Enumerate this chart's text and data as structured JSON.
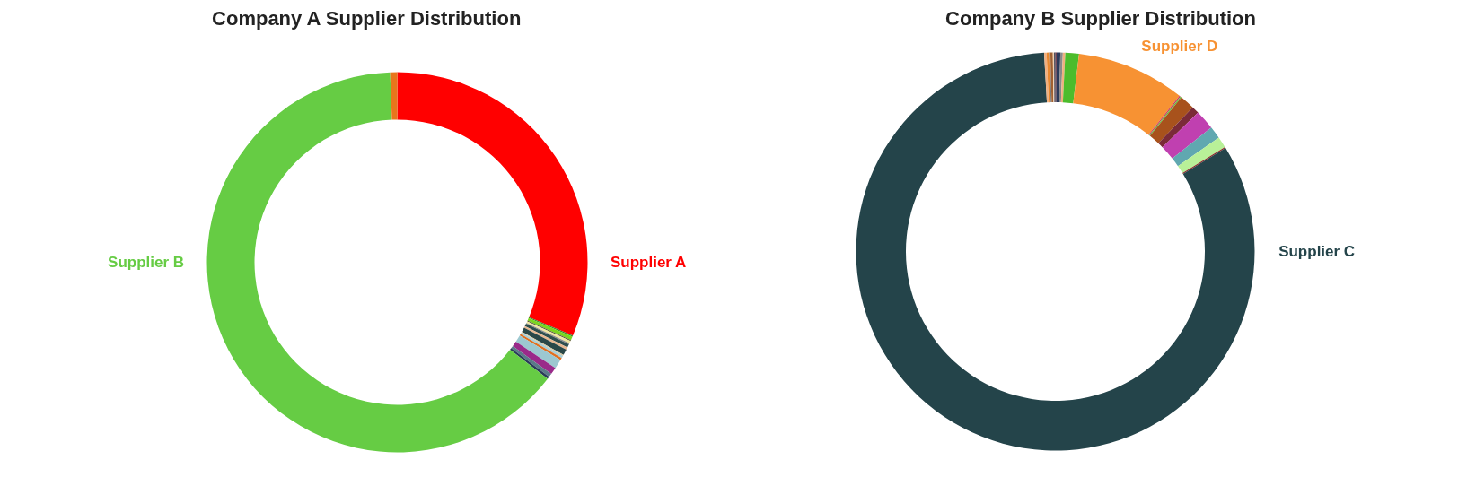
{
  "chart_data": [
    {
      "type": "donut",
      "title": "Company A Supplier Distribution",
      "categories": [
        "Supplier A",
        null,
        null,
        null,
        null,
        null,
        null,
        null,
        null,
        null,
        null,
        null,
        null,
        null,
        null,
        null,
        "Supplier B",
        null
      ],
      "values": [
        31.3,
        0.1,
        0.3,
        0.1,
        0.2,
        0.1,
        0.3,
        0.2,
        0.5,
        0.1,
        0.2,
        0.2,
        0.8,
        0.6,
        0.3,
        0.2,
        63.9,
        0.6
      ],
      "colors": [
        "#ff0000",
        "#3a8a2a",
        "#7ad61e",
        "#5a5a3a",
        "#f0e6a0",
        "#8a8a8a",
        "#2f4f4f",
        "#e8b890",
        "#2a4848",
        "#d8c8a0",
        "#a8d0d8",
        "#e07020",
        "#9cc8d0",
        "#9a2a8a",
        "#5a7a88",
        "#2a3a5a",
        "#66cc44",
        "#e8761c"
      ]
    },
    {
      "type": "donut",
      "title": "Company B Supplier Distribution",
      "categories": [
        null,
        null,
        null,
        null,
        null,
        "Supplier D",
        null,
        null,
        null,
        null,
        null,
        null,
        null,
        null,
        "Supplier C",
        null,
        null,
        null,
        null,
        null,
        null
      ],
      "values": [
        0.1,
        0.3,
        0.2,
        0.2,
        1.1,
        8.8,
        0.1,
        0.1,
        1.2,
        0.6,
        1.6,
        1.0,
        0.9,
        0.1,
        82.8,
        0.2,
        0.2,
        0.1,
        0.2,
        0.1,
        0.1
      ],
      "colors": [
        "#6a2a3a",
        "#2a3a5a",
        "#8a8a8a",
        "#f0b080",
        "#4cbc2c",
        "#f79233",
        "#d04060",
        "#60c040",
        "#a8521c",
        "#7a2a38",
        "#c040b0",
        "#60a8b0",
        "#b8f098",
        "#8a2a2a",
        "#24444a",
        "#f0b080",
        "#e88830",
        "#7a7a7a",
        "#a06030",
        "#f0d0b0",
        "#3a3a4a"
      ]
    }
  ]
}
